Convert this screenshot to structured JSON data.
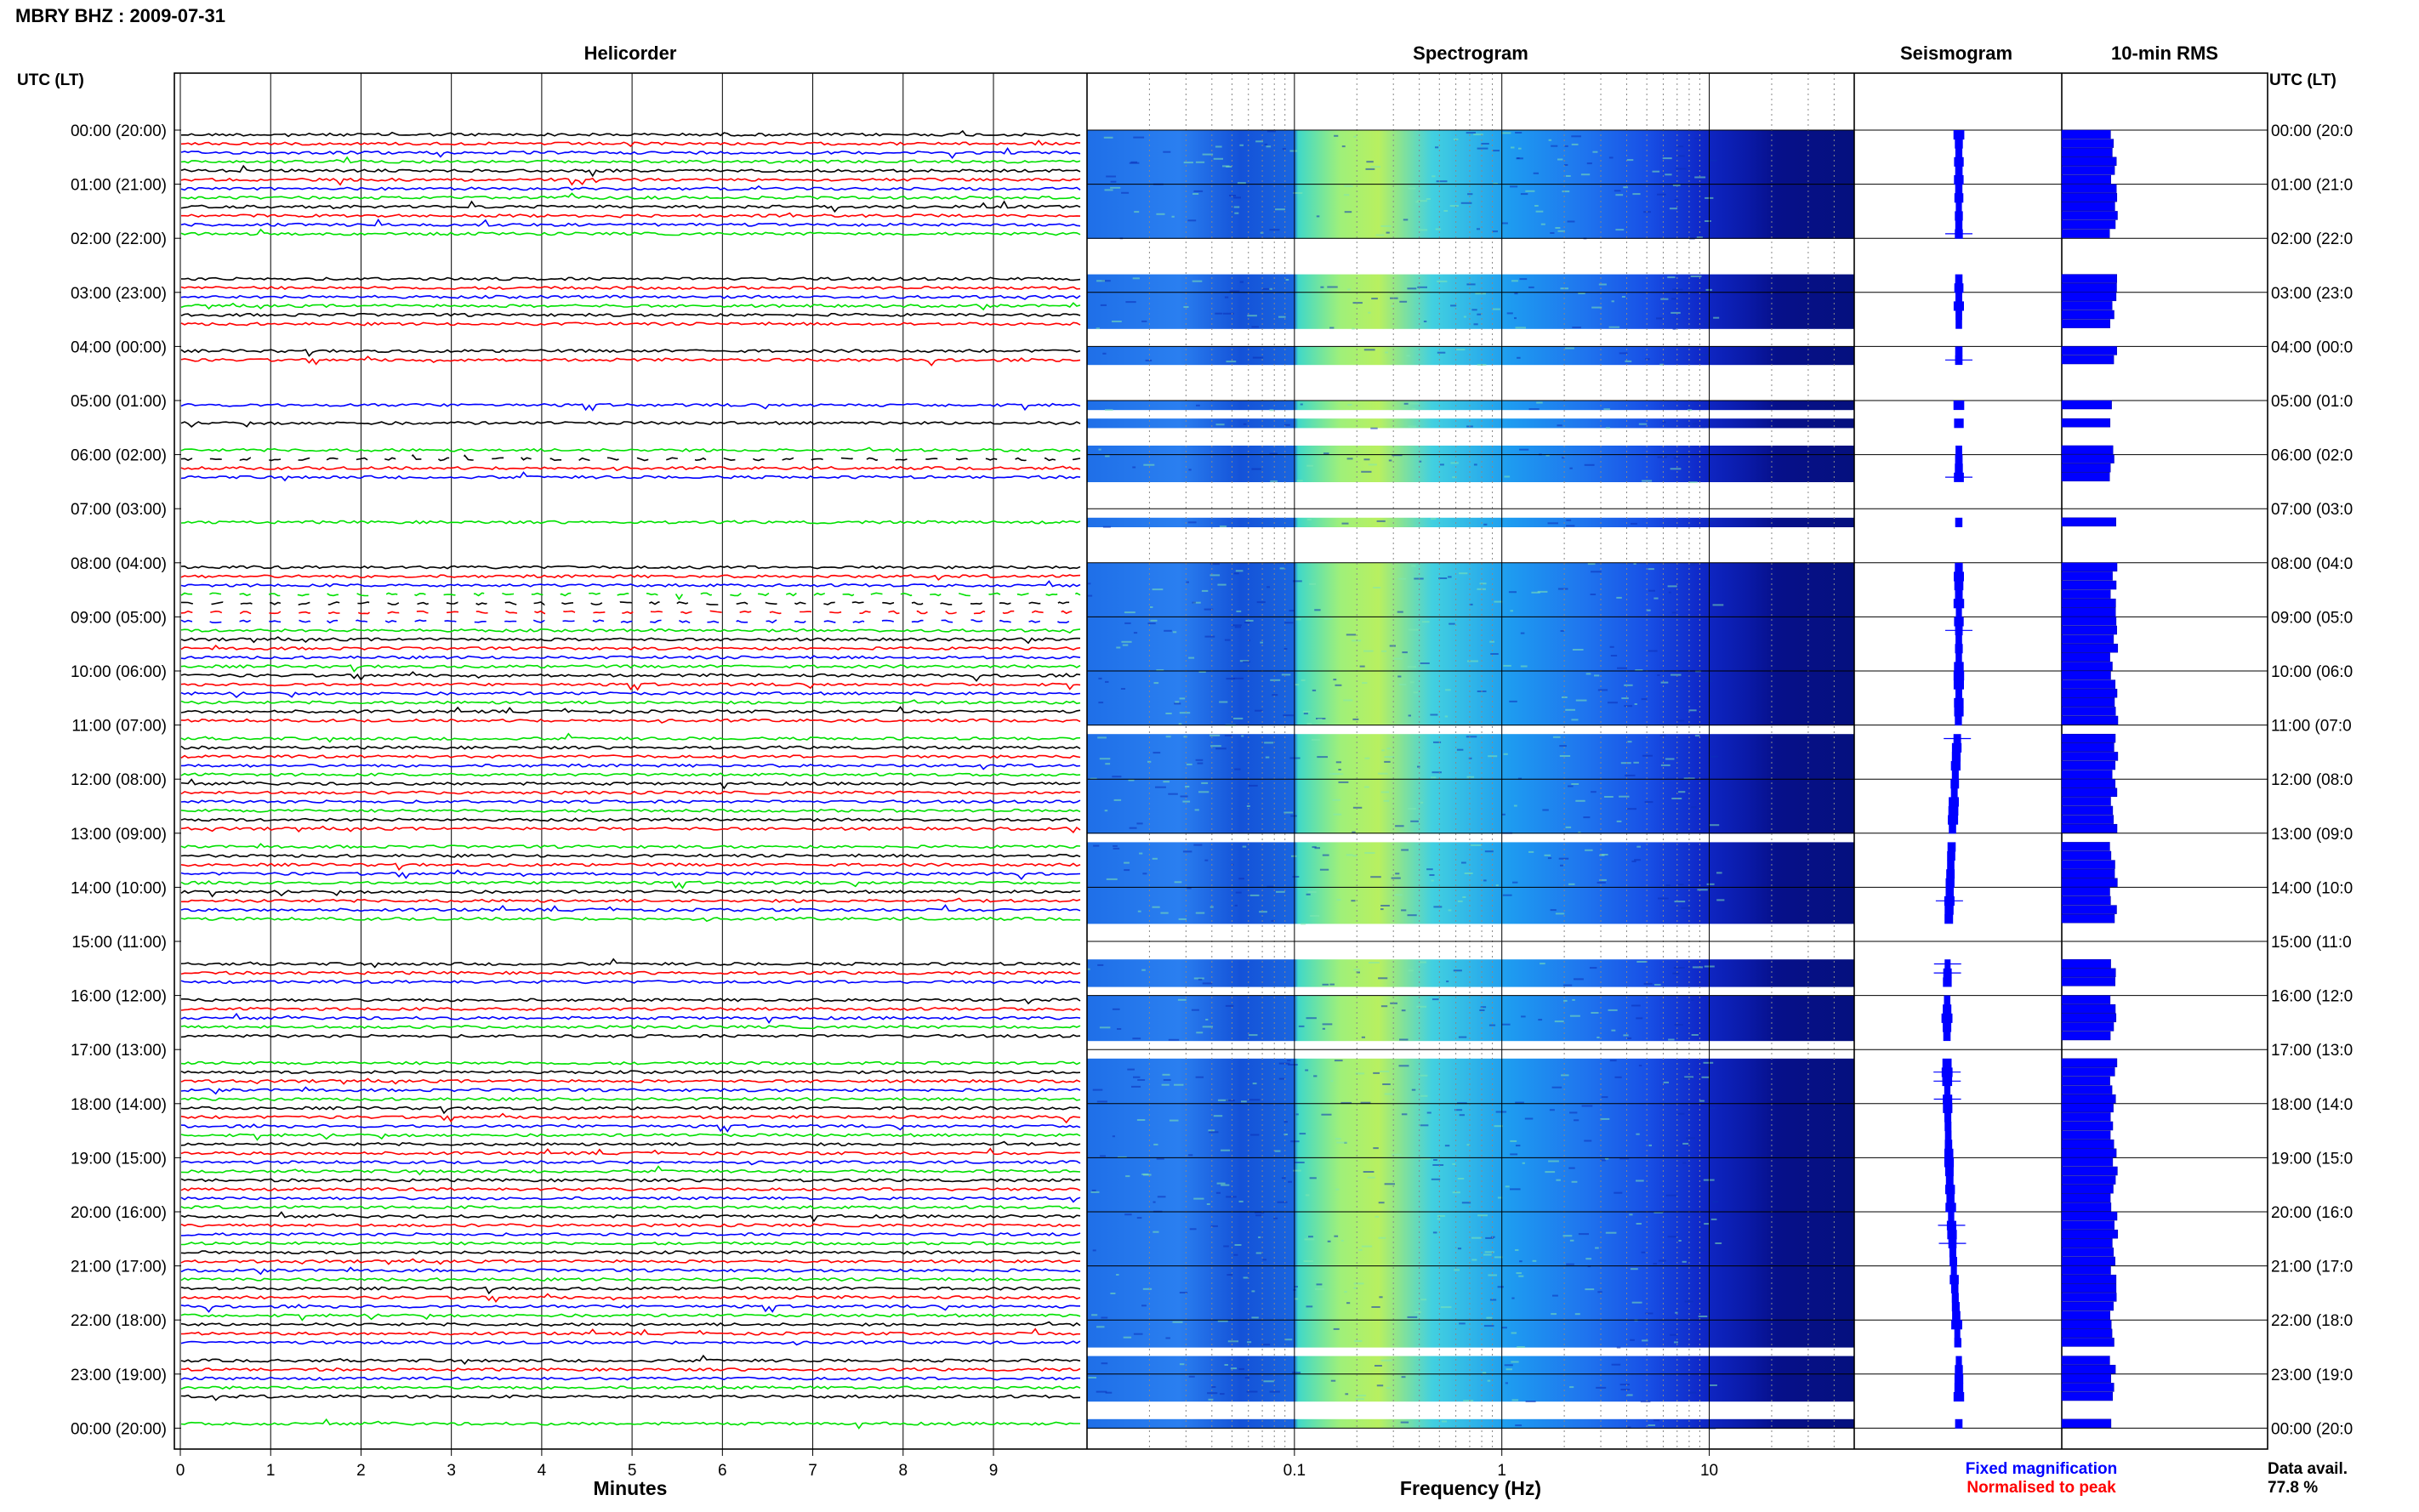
{
  "header": {
    "title": "MBRY BHZ : 2009-07-31",
    "utc_lt_left": "UTC (LT)",
    "utc_lt_right": "UTC (LT)"
  },
  "panels": {
    "helicorder": "Helicorder",
    "spectrogram": "Spectrogram",
    "seismogram": "Seismogram",
    "rms": "10-min RMS"
  },
  "colors": {
    "trace_cycle": [
      "#000000",
      "#ff0000",
      "#0000ff",
      "#00e000"
    ],
    "fixed": "#0000ff",
    "normalised": "#ff0000",
    "spectrogram_gap": "#ffffff"
  },
  "chart_data": {
    "type": "heatmap",
    "time_labels_left": [
      "00:00 (20:00)",
      "01:00 (21:00)",
      "02:00 (22:00)",
      "03:00 (23:00)",
      "04:00 (00:00)",
      "05:00 (01:00)",
      "06:00 (02:00)",
      "07:00 (03:00)",
      "08:00 (04:00)",
      "09:00 (05:00)",
      "10:00 (06:00)",
      "11:00 (07:00)",
      "12:00 (08:00)",
      "13:00 (09:00)",
      "14:00 (10:00)",
      "15:00 (11:00)",
      "16:00 (12:00)",
      "17:00 (13:00)",
      "18:00 (14:00)",
      "19:00 (15:00)",
      "20:00 (16:00)",
      "21:00 (17:00)",
      "22:00 (18:00)",
      "23:00 (19:00)",
      "00:00 (20:00)"
    ],
    "time_labels_right": [
      "00:00 (20:0",
      "01:00 (21:0",
      "02:00 (22:0",
      "03:00 (23:0",
      "04:00 (00:0",
      "05:00 (01:0",
      "06:00 (02:0",
      "07:00 (03:0",
      "08:00 (04:0",
      "09:00 (05:0",
      "10:00 (06:0",
      "11:00 (07:0",
      "12:00 (08:0",
      "13:00 (09:0",
      "14:00 (10:0",
      "15:00 (11:0",
      "16:00 (12:0",
      "17:00 (13:0",
      "18:00 (14:0",
      "19:00 (15:0",
      "20:00 (16:0",
      "21:00 (17:0",
      "22:00 (18:0",
      "23:00 (19:0",
      "00:00 (20:0"
    ],
    "helicorder": {
      "xlabel": "Minutes",
      "xticks": [
        "0",
        "1",
        "2",
        "3",
        "4",
        "5",
        "6",
        "7",
        "8",
        "9"
      ],
      "xlim": [
        0,
        10
      ],
      "gridlines": true
    },
    "spectrogram": {
      "xlabel": "Frequency (Hz)",
      "xscale": "log",
      "xlim": [
        0.01,
        50
      ],
      "xticks": [
        "0.1",
        "1",
        "10"
      ]
    },
    "rows": {
      "count": 144,
      "gaps_10min": [
        [
          12,
          16
        ],
        [
          22,
          24
        ],
        [
          26,
          30
        ],
        [
          31,
          32
        ],
        [
          33,
          35
        ],
        [
          39,
          43
        ],
        [
          44,
          48
        ],
        [
          66,
          67
        ],
        [
          78,
          79
        ],
        [
          88,
          92
        ],
        [
          95,
          96
        ],
        [
          101,
          103
        ],
        [
          135,
          136
        ],
        [
          141,
          143
        ]
      ],
      "partial_gaps_10min": [
        36,
        51,
        52,
        53,
        54
      ]
    },
    "legend": {
      "fixed": "Fixed magnification",
      "normalised": "Normalised to peak"
    },
    "data_availability": {
      "label": "Data avail.",
      "value": "77.8 %"
    }
  }
}
